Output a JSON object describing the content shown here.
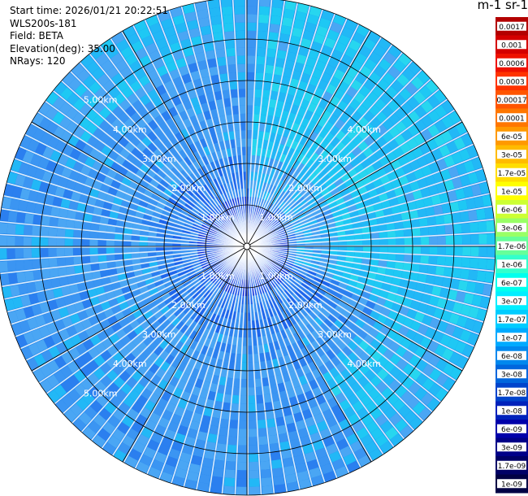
{
  "info": {
    "start_time": "Start time: 2026/01/21 20:22:51",
    "instrument": "WLS200s-181",
    "field": "Field: BETA",
    "elevation": "Elevation(deg): 35.00",
    "nrays": "NRays: 120"
  },
  "colorbar": {
    "unit_label": "m-1 sr-1",
    "ticks": [
      "0.0017",
      "0.001",
      "0.0006",
      "0.0003",
      "0.00017",
      "0.0001",
      "6e-05",
      "3e-05",
      "1.7e-05",
      "1e-05",
      "6e-06",
      "3e-06",
      "1.7e-06",
      "1e-06",
      "6e-07",
      "3e-07",
      "1.7e-07",
      "1e-07",
      "6e-08",
      "3e-08",
      "1.7e-08",
      "1e-08",
      "6e-09",
      "3e-09",
      "1.7e-09",
      "1e-09"
    ],
    "colors": [
      "#b30000",
      "#d40000",
      "#ee1100",
      "#ff3300",
      "#ff5500",
      "#ff7700",
      "#ff9900",
      "#ffbb00",
      "#ffdd00",
      "#ffff00",
      "#ccff33",
      "#99ff66",
      "#66ff99",
      "#33ffcc",
      "#00ffee",
      "#00eeff",
      "#00ccff",
      "#00aaff",
      "#0088ee",
      "#0066dd",
      "#0044cc",
      "#0022bb",
      "#0000aa",
      "#000088",
      "#000066",
      "#000044"
    ]
  },
  "chart_data": {
    "type": "polar-ppi",
    "n_rays": 120,
    "max_range_km": 6.0,
    "ring_labels": [
      {
        "label": "1.00km",
        "range_km": 1.0
      },
      {
        "label": "2.00km",
        "range_km": 2.0
      },
      {
        "label": "3.00km",
        "range_km": 3.0
      },
      {
        "label": "4.00km",
        "range_km": 4.0
      },
      {
        "label": "5.00km",
        "range_km": 5.0
      }
    ],
    "grid_rings_km": [
      1,
      2,
      3,
      4,
      5,
      6
    ],
    "spoke_count": 12
  }
}
